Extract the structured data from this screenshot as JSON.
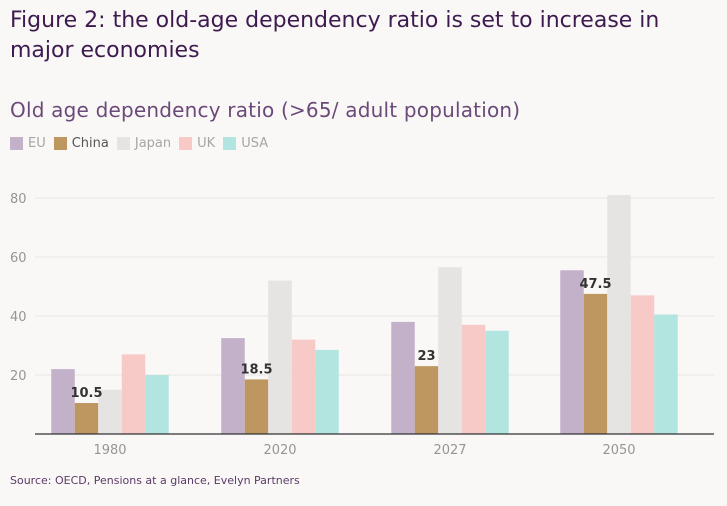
{
  "figure_title": "Figure 2: the old-age dependency ratio is set to increase in major economies",
  "source": "Source: OECD, Pensions at a glance, Evelyn Partners",
  "chart_data": {
    "type": "bar",
    "title": "Old age dependency ratio (>65/ adult population)",
    "xlabel": "",
    "ylabel": "",
    "categories": [
      "1980",
      "2020",
      "2027",
      "2050"
    ],
    "ylim": [
      0,
      80
    ],
    "yticks": [
      20,
      40,
      60,
      80
    ],
    "grid": true,
    "legend_position": "top-left",
    "series": [
      {
        "name": "EU",
        "color": "#c3b0c9",
        "values": [
          22,
          32.5,
          38,
          55.5
        ]
      },
      {
        "name": "China",
        "color": "#be9660",
        "values": [
          10.5,
          18.5,
          23,
          47.5
        ],
        "data_labels": [
          "10.5",
          "18.5",
          "23",
          "47.5"
        ]
      },
      {
        "name": "Japan",
        "color": "#e6e4e2",
        "values": [
          15,
          52,
          56.5,
          81
        ]
      },
      {
        "name": "UK",
        "color": "#f7cac7",
        "values": [
          27,
          32,
          37,
          47
        ]
      },
      {
        "name": "USA",
        "color": "#b2e4e0",
        "values": [
          20,
          28.5,
          35,
          40.5
        ]
      }
    ]
  }
}
